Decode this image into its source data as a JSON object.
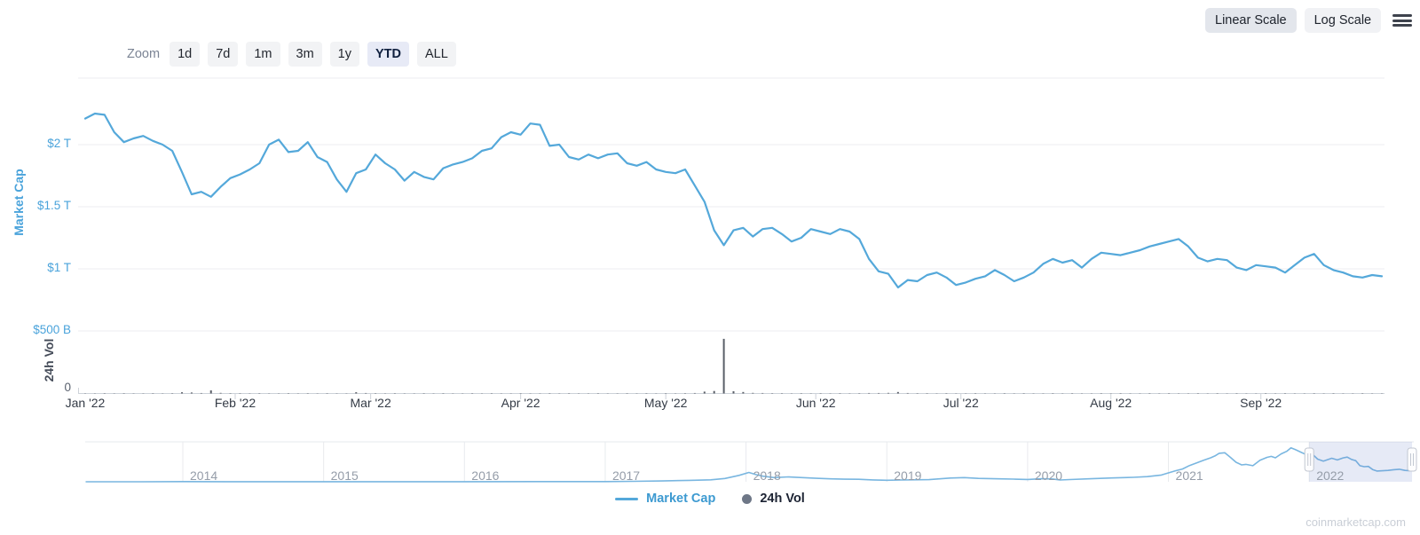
{
  "scale_toggle": {
    "options": [
      {
        "label": "Linear Scale",
        "active": true
      },
      {
        "label": "Log Scale",
        "active": false
      }
    ]
  },
  "zoom_controls": {
    "label": "Zoom",
    "options": [
      "1d",
      "7d",
      "1m",
      "3m",
      "1y",
      "YTD",
      "ALL"
    ],
    "active": "YTD"
  },
  "legend": {
    "items": [
      {
        "label": "Market Cap",
        "marker": "line",
        "color": "#54a8da"
      },
      {
        "label": "24h Vol",
        "marker": "circle",
        "color": "#6e7787"
      }
    ]
  },
  "watermark": "coinmarketcap.com",
  "colors": {
    "line": "#54a8da",
    "navigator_line": "#79b6e0",
    "volume_bar": "#5a5f68",
    "grid": "#eceef1",
    "axis": "#cdd2d9",
    "highlight_fill": "rgba(99,125,199,0.16)"
  },
  "chart_data": {
    "type": "line",
    "x_axis": {
      "tick_labels": [
        "Jan '22",
        "Feb '22",
        "Mar '22",
        "Apr '22",
        "May '22",
        "Jun '22",
        "Jul '22",
        "Aug '22",
        "Sep '22"
      ],
      "range": [
        "2022-01-01",
        "2022-09-26"
      ]
    },
    "market_cap_axis": {
      "title": "Market Cap",
      "tick_labels": [
        "$2 T",
        "$1.5 T",
        "$1 T",
        "$500 B"
      ],
      "tick_values_trillions": [
        2.0,
        1.5,
        1.0,
        0.5
      ]
    },
    "volume_axis": {
      "title": "24h Vol",
      "tick_labels": [
        "0"
      ],
      "tick_values_billions": [
        0
      ],
      "max_billions": 500
    },
    "grid": true,
    "legend_position": "bottom-center",
    "series": [
      {
        "name": "Market Cap",
        "unit": "USD trillions",
        "start_date": "2022-01-01",
        "interval_days": 2,
        "values": [
          2.21,
          2.25,
          2.24,
          2.1,
          2.02,
          2.05,
          2.07,
          2.03,
          2.0,
          1.95,
          1.78,
          1.6,
          1.62,
          1.58,
          1.66,
          1.73,
          1.76,
          1.8,
          1.85,
          2.0,
          2.04,
          1.94,
          1.95,
          2.02,
          1.9,
          1.86,
          1.72,
          1.62,
          1.77,
          1.8,
          1.92,
          1.85,
          1.8,
          1.71,
          1.78,
          1.74,
          1.72,
          1.81,
          1.84,
          1.86,
          1.89,
          1.95,
          1.97,
          2.06,
          2.1,
          2.08,
          2.17,
          2.16,
          1.99,
          2.0,
          1.9,
          1.88,
          1.92,
          1.89,
          1.92,
          1.93,
          1.85,
          1.83,
          1.86,
          1.8,
          1.78,
          1.77,
          1.8,
          1.67,
          1.54,
          1.31,
          1.19,
          1.31,
          1.33,
          1.26,
          1.32,
          1.33,
          1.28,
          1.22,
          1.25,
          1.32,
          1.3,
          1.28,
          1.32,
          1.3,
          1.24,
          1.08,
          0.98,
          0.96,
          0.85,
          0.91,
          0.9,
          0.95,
          0.97,
          0.93,
          0.87,
          0.89,
          0.92,
          0.94,
          0.99,
          0.95,
          0.9,
          0.93,
          0.97,
          1.04,
          1.08,
          1.05,
          1.07,
          1.01,
          1.08,
          1.13,
          1.12,
          1.11,
          1.13,
          1.15,
          1.18,
          1.2,
          1.22,
          1.24,
          1.18,
          1.09,
          1.06,
          1.08,
          1.07,
          1.01,
          0.99,
          1.03,
          1.02,
          1.01,
          0.97,
          1.03,
          1.09,
          1.12,
          1.03,
          0.99,
          0.97,
          0.94,
          0.93,
          0.95,
          0.94
        ]
      },
      {
        "name": "24h Vol",
        "unit": "USD billions",
        "start_date": "2022-01-01",
        "interval_days": 2,
        "values": [
          2,
          2,
          3,
          2,
          3,
          2,
          2,
          3,
          2,
          3,
          10,
          8,
          4,
          25,
          5,
          3,
          3,
          2,
          3,
          2,
          2,
          3,
          2,
          3,
          2,
          3,
          2,
          2,
          10,
          4,
          3,
          2,
          3,
          2,
          2,
          3,
          2,
          3,
          2,
          2,
          3,
          2,
          3,
          2,
          2,
          3,
          2,
          2,
          3,
          2,
          3,
          2,
          2,
          3,
          2,
          2,
          3,
          2,
          3,
          2,
          3,
          2,
          3,
          4,
          15,
          20,
          440,
          18,
          12,
          5,
          4,
          3,
          3,
          2,
          3,
          2,
          3,
          2,
          3,
          2,
          3,
          4,
          4,
          5,
          12,
          4,
          3,
          3,
          2,
          3,
          2,
          2,
          3,
          2,
          2,
          3,
          2,
          3,
          2,
          2,
          3,
          2,
          3,
          2,
          2,
          3,
          2,
          3,
          2,
          2,
          3,
          2,
          3,
          2,
          2,
          3,
          2,
          3,
          2,
          3,
          2,
          2,
          3,
          2,
          3,
          2,
          2,
          3,
          2,
          3,
          2,
          2,
          3,
          2,
          2
        ]
      }
    ],
    "navigator": {
      "year_labels": [
        "2014",
        "2015",
        "2016",
        "2017",
        "2018",
        "2019",
        "2020",
        "2021",
        "2022"
      ],
      "x_range_years": [
        2013.31,
        2022.73
      ],
      "selected_range_years": [
        2022.0,
        2022.73
      ],
      "series_unit": "USD trillions",
      "x_years": [
        2013.31,
        2013.7,
        2014.0,
        2014.3,
        2014.6,
        2015.0,
        2015.5,
        2016.0,
        2016.5,
        2016.9,
        2017.0,
        2017.2,
        2017.4,
        2017.6,
        2017.75,
        2017.85,
        2017.95,
        2018.02,
        2018.07,
        2018.12,
        2018.2,
        2018.3,
        2018.4,
        2018.5,
        2018.6,
        2018.7,
        2018.8,
        2018.9,
        2019.0,
        2019.1,
        2019.3,
        2019.45,
        2019.55,
        2019.65,
        2019.8,
        2019.9,
        2020.0,
        2020.1,
        2020.18,
        2020.23,
        2020.3,
        2020.45,
        2020.6,
        2020.75,
        2020.85,
        2020.95,
        2021.0,
        2021.05,
        2021.1,
        2021.15,
        2021.2,
        2021.25,
        2021.3,
        2021.33,
        2021.36,
        2021.4,
        2021.44,
        2021.48,
        2021.52,
        2021.55,
        2021.6,
        2021.65,
        2021.7,
        2021.73,
        2021.76,
        2021.8,
        2021.84,
        2021.87,
        2021.9,
        2021.94,
        2021.97,
        2022.0,
        2022.03,
        2022.06,
        2022.1,
        2022.13,
        2022.16,
        2022.2,
        2022.24,
        2022.27,
        2022.3,
        2022.33,
        2022.36,
        2022.39,
        2022.42,
        2022.45,
        2022.48,
        2022.52,
        2022.56,
        2022.6,
        2022.64,
        2022.68,
        2022.73
      ],
      "values_trillions": [
        0.001,
        0.001,
        0.012,
        0.008,
        0.006,
        0.004,
        0.004,
        0.008,
        0.013,
        0.016,
        0.018,
        0.035,
        0.07,
        0.12,
        0.17,
        0.28,
        0.55,
        0.8,
        0.62,
        0.48,
        0.36,
        0.42,
        0.36,
        0.3,
        0.25,
        0.22,
        0.21,
        0.16,
        0.13,
        0.15,
        0.18,
        0.32,
        0.36,
        0.29,
        0.25,
        0.23,
        0.2,
        0.26,
        0.24,
        0.15,
        0.19,
        0.26,
        0.33,
        0.38,
        0.44,
        0.58,
        0.76,
        0.95,
        1.1,
        1.4,
        1.62,
        1.85,
        2.06,
        2.22,
        2.45,
        2.5,
        2.1,
        1.68,
        1.45,
        1.5,
        1.38,
        1.85,
        2.1,
        2.18,
        2.06,
        2.4,
        2.62,
        2.92,
        2.78,
        2.55,
        2.38,
        2.22,
        2.28,
        1.95,
        1.78,
        1.9,
        2.02,
        1.88,
        2.05,
        2.12,
        1.92,
        1.82,
        1.38,
        1.3,
        1.32,
        1.05,
        0.92,
        0.95,
        0.98,
        1.04,
        1.08,
        0.98,
        0.94
      ]
    }
  }
}
